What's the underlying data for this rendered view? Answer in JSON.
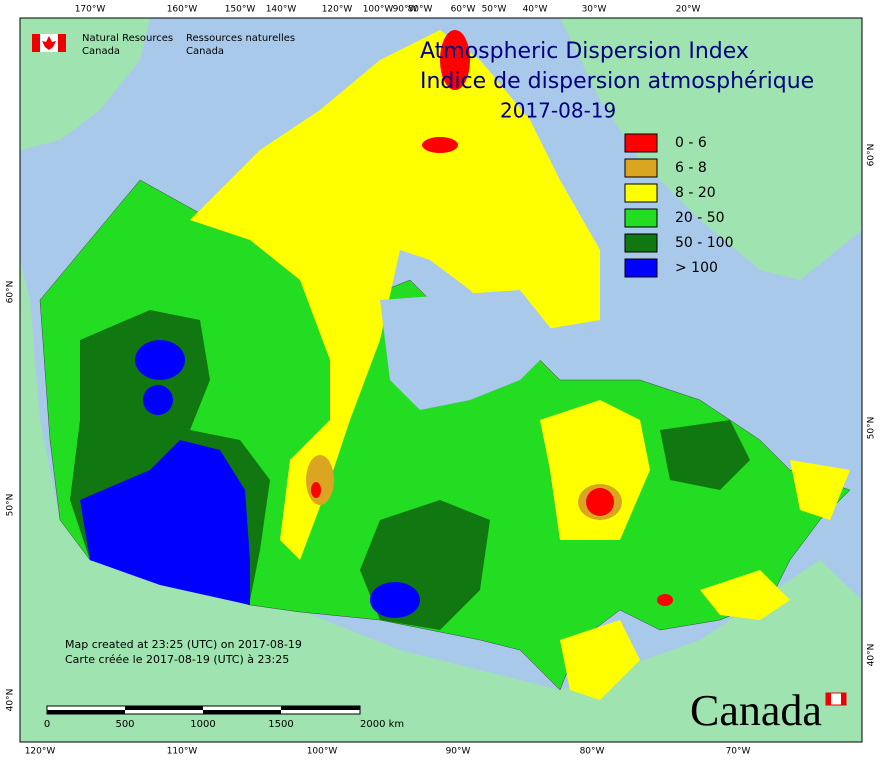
{
  "header": {
    "agency_en": [
      "Natural Resources",
      "Canada"
    ],
    "agency_fr": [
      "Ressources naturelles",
      "Canada"
    ]
  },
  "title": {
    "en": "Atmospheric Dispersion Index",
    "fr": "Indice de dispersion atmosphérique",
    "date": "2017-08-19"
  },
  "legend": [
    {
      "label": "0 - 6",
      "color": "#ff0000"
    },
    {
      "label": "6 - 8",
      "color": "#daa520"
    },
    {
      "label": "8 - 20",
      "color": "#ffff00"
    },
    {
      "label": "20 - 50",
      "color": "#22dd22"
    },
    {
      "label": "50 - 100",
      "color": "#117711"
    },
    {
      "label": "> 100",
      "color": "#0000ff"
    }
  ],
  "graticule": {
    "top": [
      "170°W",
      "160°W",
      "150°W",
      "140°W",
      "120°W",
      "100°W",
      "90°W",
      "80°W",
      "60°W",
      "50°W",
      "40°W",
      "30°W",
      "20°W"
    ],
    "bottom": [
      "120°W",
      "110°W",
      "100°W",
      "90°W",
      "80°W",
      "70°W"
    ],
    "left": [
      "60°N",
      "50°N",
      "40°N"
    ],
    "right": [
      "60°N",
      "50°N",
      "40°N"
    ]
  },
  "credits": [
    "Map created at 23:25 (UTC) on 2017-08-19",
    "Carte créée le 2017-08-19 (UTC) à 23:25"
  ],
  "scale_bar": [
    "0",
    "500",
    "1000",
    "1500",
    "2000 km"
  ],
  "wordmark": "Canada"
}
